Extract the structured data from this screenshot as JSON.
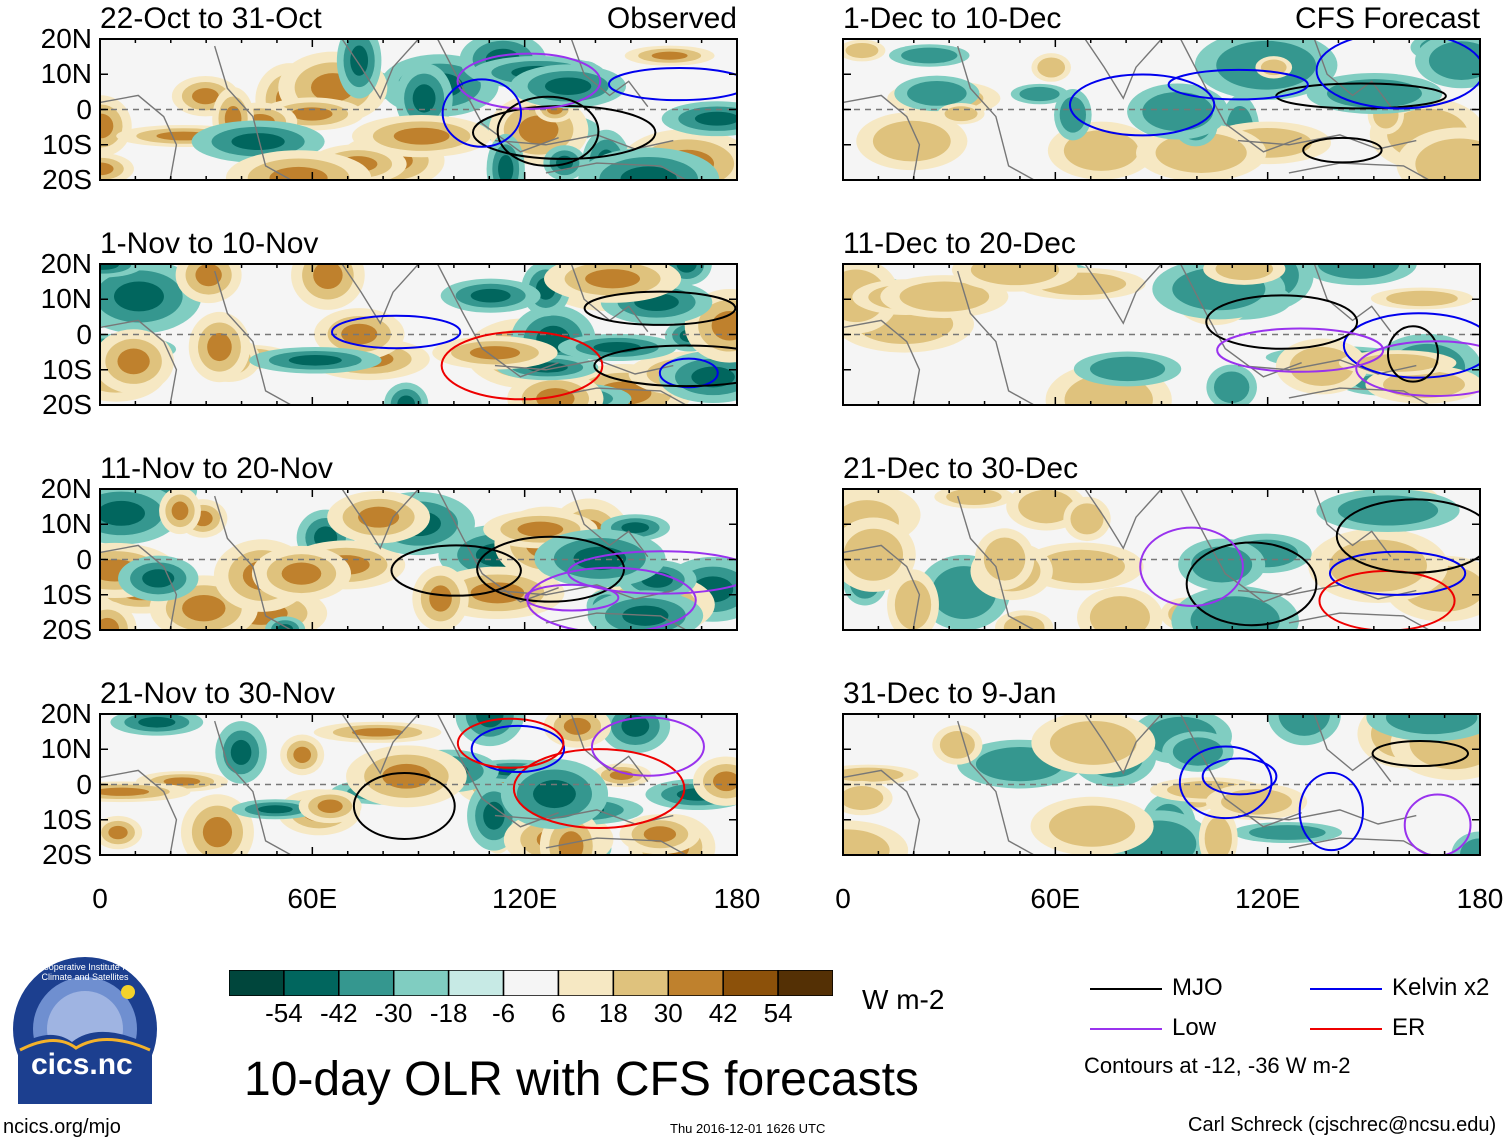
{
  "panels": [
    {
      "title": "22-Oct to 31-Oct",
      "tag": "Observed"
    },
    {
      "title": "1-Nov to 10-Nov",
      "tag": ""
    },
    {
      "title": "11-Nov to 20-Nov",
      "tag": ""
    },
    {
      "title": "21-Nov to 30-Nov",
      "tag": ""
    },
    {
      "title": "1-Dec to 10-Dec",
      "tag": "CFS Forecast"
    },
    {
      "title": "11-Dec to 20-Dec",
      "tag": ""
    },
    {
      "title": "21-Dec to 30-Dec",
      "tag": ""
    },
    {
      "title": "31-Dec to 9-Jan",
      "tag": ""
    }
  ],
  "lat_labels": [
    "20N",
    "10N",
    "0",
    "10S",
    "20S"
  ],
  "lon_labels": [
    "0",
    "60E",
    "120E",
    "180"
  ],
  "colorbar": {
    "colors": [
      "#00463c",
      "#01665e",
      "#35978f",
      "#80cdc1",
      "#c7eae5",
      "#f5f5f5",
      "#f6e8c3",
      "#dfc27d",
      "#bf812d",
      "#8c510a",
      "#543005"
    ],
    "labels": [
      "-54",
      "-42",
      "-30",
      "-18",
      "-6",
      "6",
      "18",
      "30",
      "42",
      "54"
    ],
    "units": "W m-2"
  },
  "main_title": "10-day OLR with CFS forecasts",
  "legend": {
    "items": [
      {
        "label": "MJO",
        "color": "#000000"
      },
      {
        "label": "Kelvin x2",
        "color": "#0000ee"
      },
      {
        "label": "Low",
        "color": "#9932ee"
      },
      {
        "label": "ER",
        "color": "#ee0000"
      }
    ],
    "note": "Contours at -12, -36 W m-2"
  },
  "logo_text": "cics.nc",
  "logo_ring_text": "Cooperative Institute for Climate and Satellites",
  "footer": {
    "left": "ncics.org/mjo",
    "center": "Thu 2016-12-01 1626 UTC",
    "right": "Carl Schreck (cjschrec@ncsu.edu)"
  }
}
